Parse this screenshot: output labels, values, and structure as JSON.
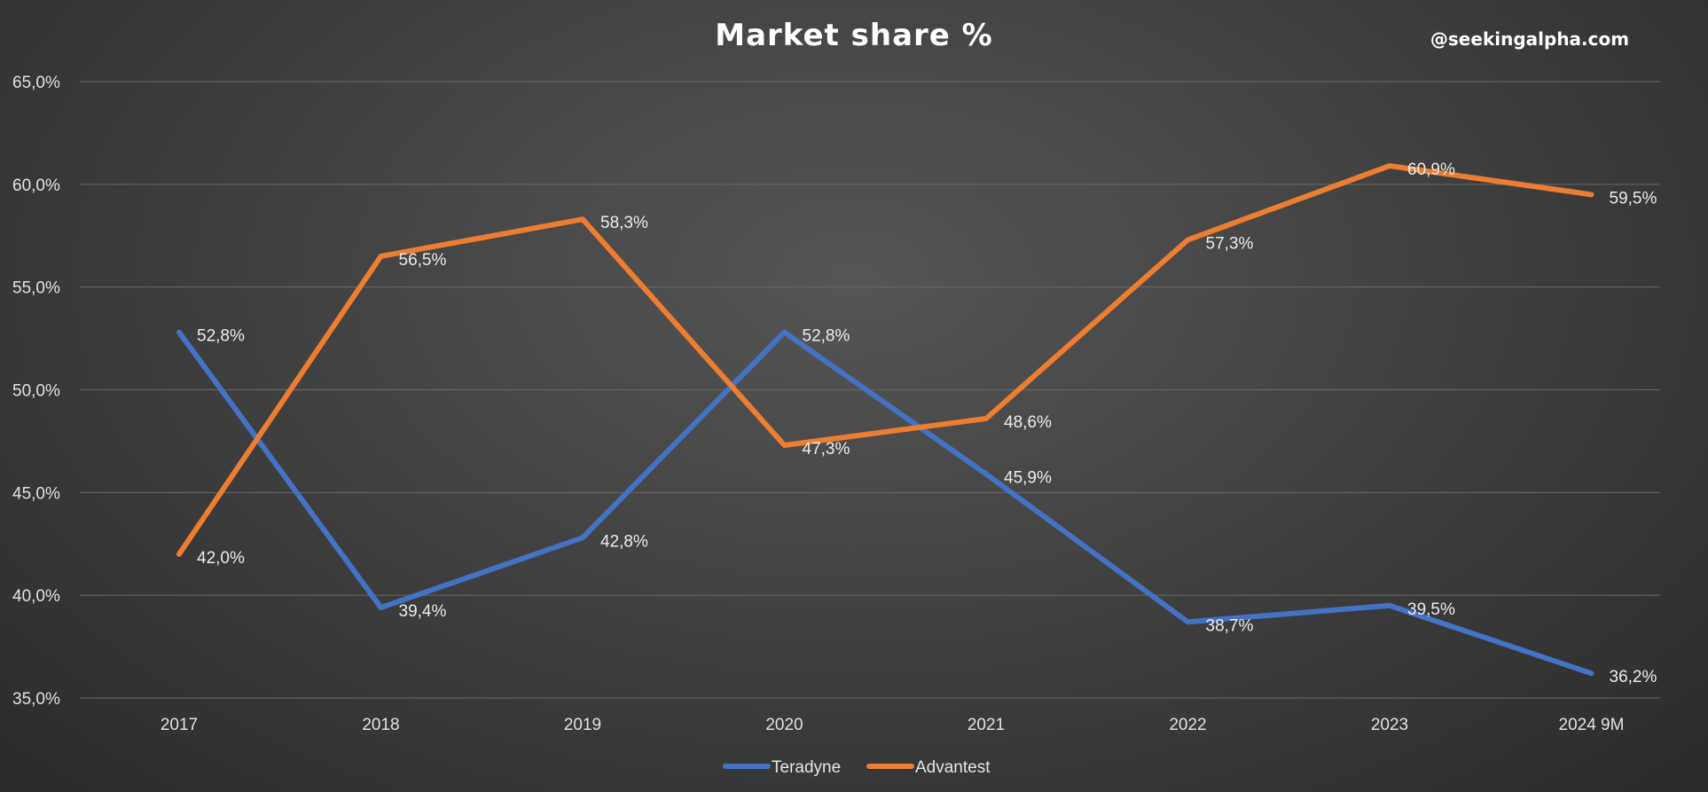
{
  "chart_data": {
    "type": "line",
    "title": "Market share %",
    "watermark": "@seekingalpha.com",
    "categories": [
      "2017",
      "2018",
      "2019",
      "2020",
      "2021",
      "2022",
      "2023",
      "2024 9M"
    ],
    "ylim": [
      35,
      65
    ],
    "yticks": [
      35,
      40,
      45,
      50,
      55,
      60,
      65
    ],
    "ytick_labels": [
      "35,0%",
      "40,0%",
      "45,0%",
      "50,0%",
      "55,0%",
      "60,0%",
      "65,0%"
    ],
    "grid": true,
    "legend_position": "bottom",
    "series": [
      {
        "name": "Teradyne",
        "color": "#4472c4",
        "values": [
          52.8,
          39.4,
          42.8,
          52.8,
          45.9,
          38.7,
          39.5,
          36.2
        ],
        "labels": [
          "52,8%",
          "39,4%",
          "42,8%",
          "52,8%",
          "45,9%",
          "38,7%",
          "39,5%",
          "36,2%"
        ]
      },
      {
        "name": "Advantest",
        "color": "#ed7d31",
        "values": [
          42.0,
          56.5,
          58.3,
          47.3,
          48.6,
          57.3,
          60.9,
          59.5
        ],
        "labels": [
          "42,0%",
          "56,5%",
          "58,3%",
          "47,3%",
          "48,6%",
          "57,3%",
          "60,9%",
          "59,5%"
        ]
      }
    ]
  }
}
